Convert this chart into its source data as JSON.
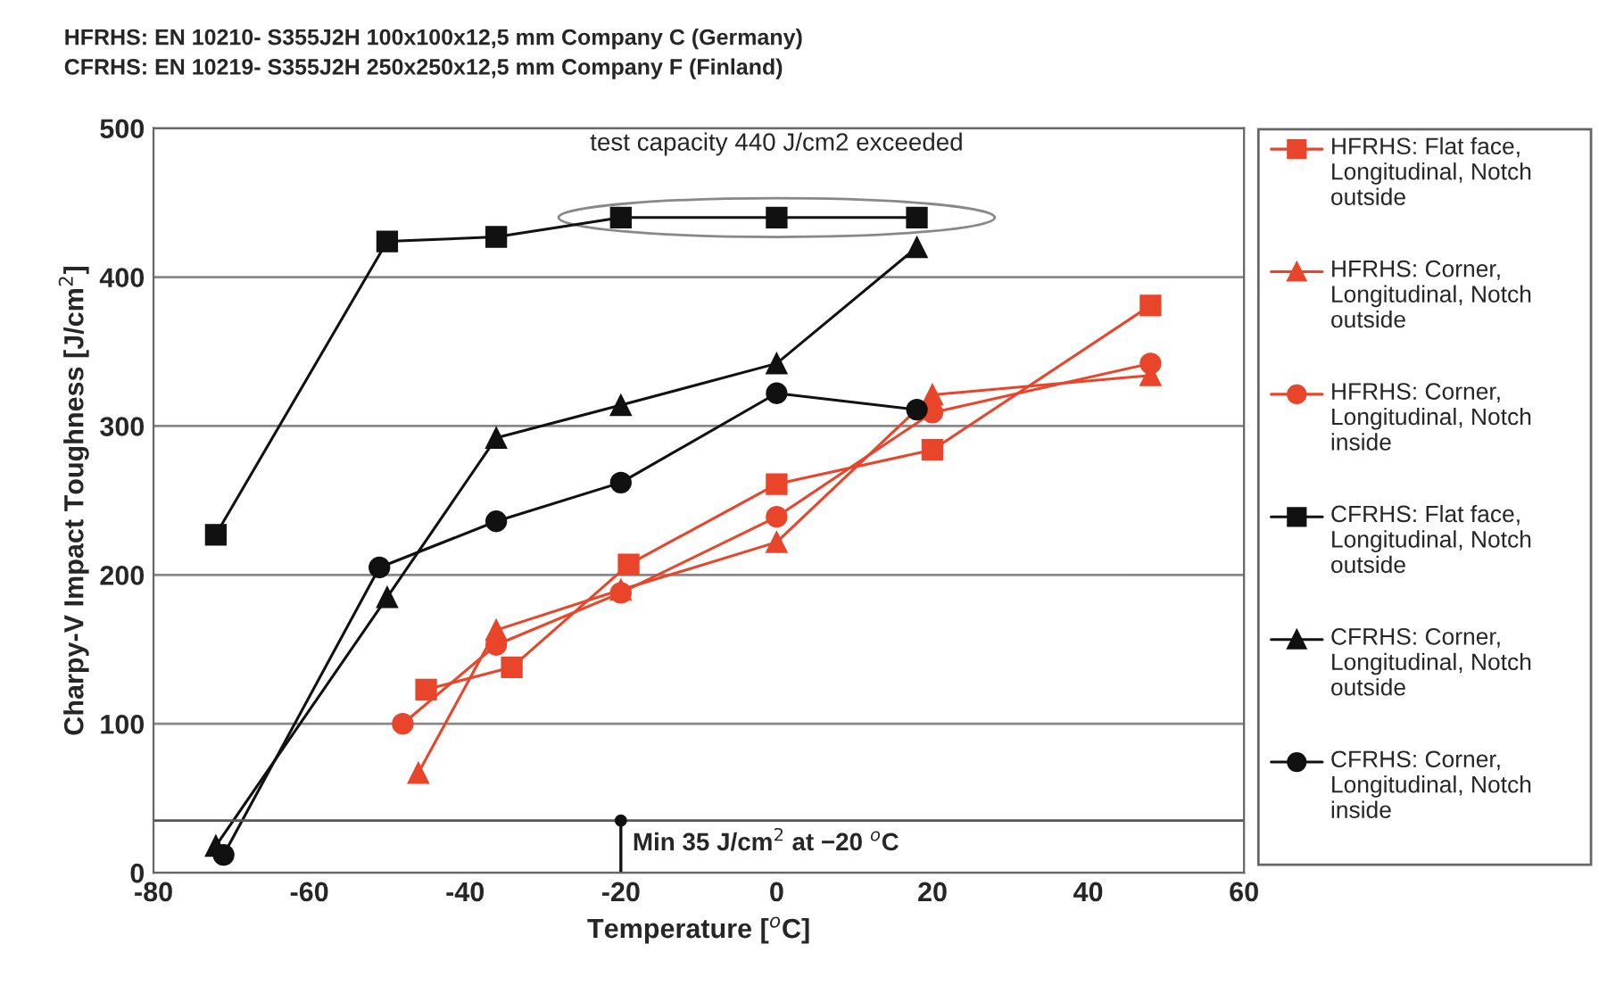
{
  "chart_data": {
    "type": "line",
    "title": "HFRHS: EN 10210- S355J2H 100x100x12,5 mm Company C (Germany)",
    "subtitle": "CFRHS: EN 10219- S355J2H 250x250x12,5 mm Company F (Finland)",
    "xlabel": "Temperature [$^{o}$C]",
    "ylabel": "Charpy-V Impact Toughness [J/cm$^{2}$]",
    "series": [
      {
        "name": "HFRHS: Flat face, Longitudinal, Notch outside",
        "color": "#e8452a",
        "marker": "square",
        "x": [
          -45,
          -34,
          -19,
          0,
          20,
          48
        ],
        "values": [
          123,
          138,
          207,
          261,
          284,
          381
        ]
      },
      {
        "name": "HFRHS: Corner, Longitudinal, Notch outside",
        "color": "#e8452a",
        "marker": "triangle",
        "x": [
          -46,
          -36,
          -20,
          0,
          20,
          48
        ],
        "values": [
          67,
          163,
          190,
          222,
          321,
          334
        ]
      },
      {
        "name": "HFRHS: Corner, Longitudinal, Notch inside",
        "color": "#e8452a",
        "marker": "circle",
        "x": [
          -48,
          -36,
          -20,
          0,
          20,
          48
        ],
        "values": [
          100,
          153,
          188,
          239,
          309,
          342
        ]
      },
      {
        "name": "CFRHS: Flat face, Longitudinal, Notch outside",
        "color": "#111111",
        "marker": "square",
        "x": [
          -72,
          -50,
          -36,
          -20,
          0,
          18
        ],
        "values": [
          227,
          424,
          427,
          440,
          440,
          440
        ]
      },
      {
        "name": "CFRHS: Corner, Longitudinal, Notch outside",
        "color": "#111111",
        "marker": "triangle",
        "x": [
          -72,
          -50,
          -36,
          -20,
          0,
          18
        ],
        "values": [
          18,
          185,
          292,
          314,
          342,
          420
        ]
      },
      {
        "name": "CFRHS: Corner, Longitudinal, Notch inside",
        "color": "#111111",
        "marker": "circle",
        "x": [
          -71,
          -51,
          -36,
          -20,
          0,
          18
        ],
        "values": [
          12,
          205,
          236,
          262,
          322,
          311
        ]
      }
    ],
    "annotations": [
      {
        "text": "test capacity 440 J/cm2 exceeded",
        "x": 0,
        "y": 440
      },
      {
        "text": "Min 35 J/cm$^{2}$ at −20 $^{o}$C",
        "x": -20,
        "y": 35
      }
    ],
    "ref_lines": [
      {
        "axis": "y",
        "value": 35,
        "color": "#555555"
      }
    ],
    "xlim": [
      -80,
      60
    ],
    "xticks": [
      -80,
      -60,
      -40,
      -20,
      0,
      20,
      40,
      60
    ],
    "ylim": [
      0,
      500
    ],
    "yticks": [
      0,
      100,
      200,
      300,
      400,
      500
    ],
    "grid": "y",
    "legend": "right",
    "line_style": "solid"
  }
}
